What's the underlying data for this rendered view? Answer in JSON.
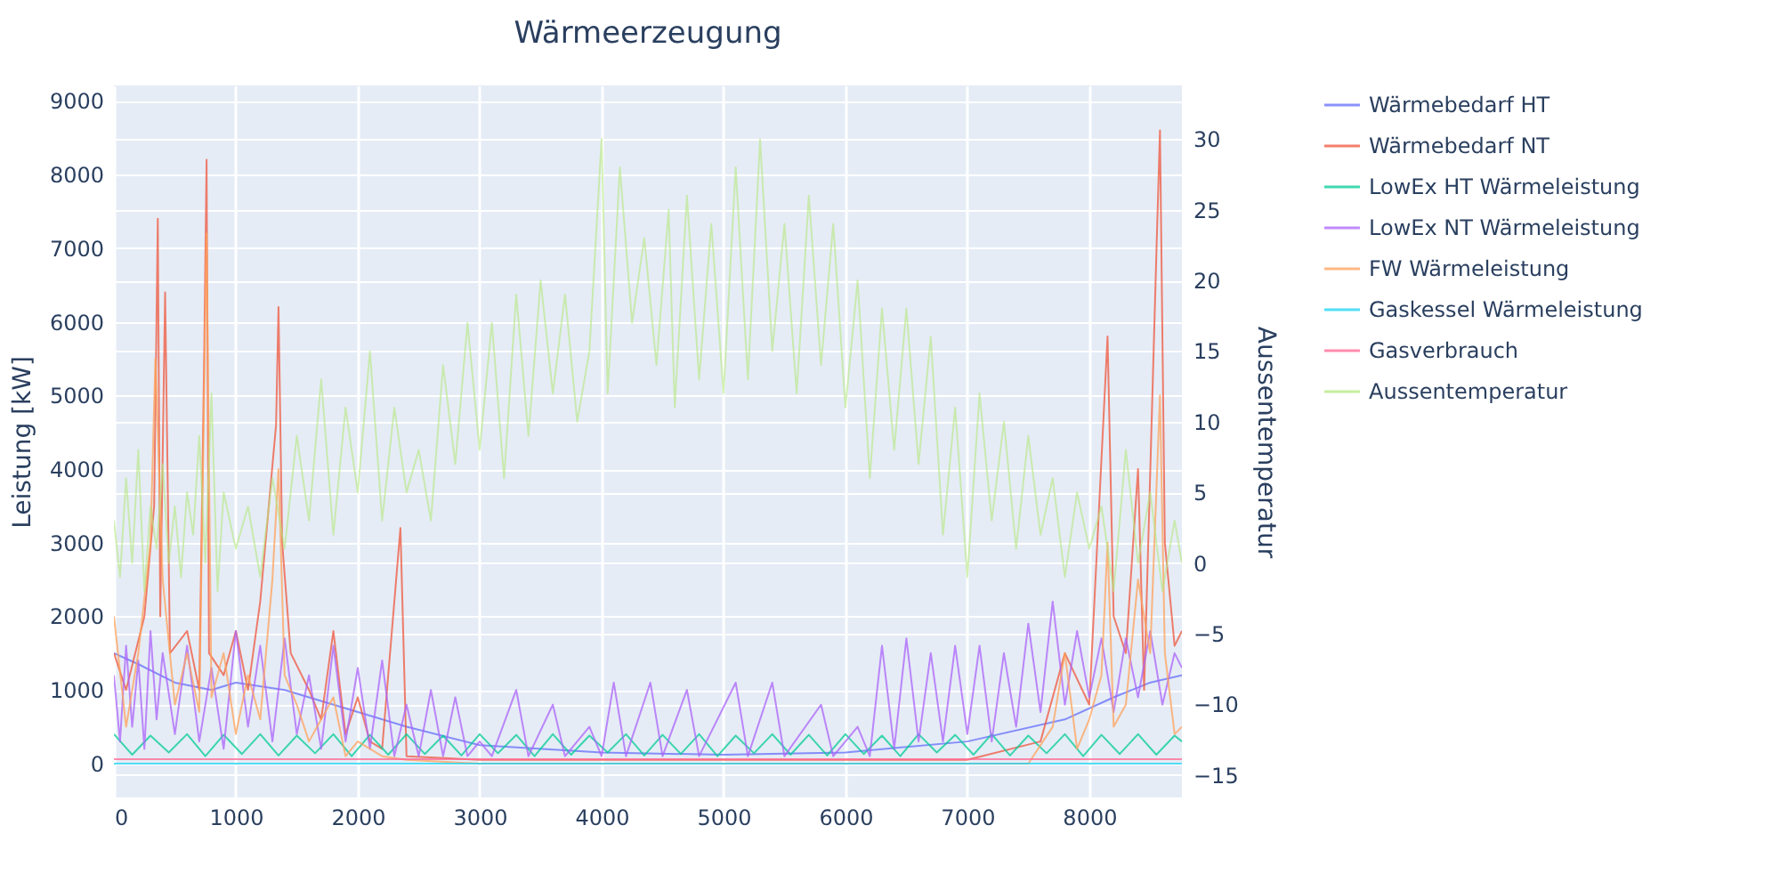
{
  "chart_data": {
    "type": "line",
    "title": "Wärmeerzeugung",
    "ylabel": "Leistung [kW]",
    "y2label": "Aussentemperatur",
    "xlim": [
      0,
      8760
    ],
    "xticks": [
      0,
      1000,
      2000,
      3000,
      4000,
      5000,
      6000,
      7000,
      8000
    ],
    "ylim": [
      -460,
      9210
    ],
    "yticks": [
      0,
      1000,
      2000,
      3000,
      4000,
      5000,
      6000,
      7000,
      8000,
      9000
    ],
    "y2lim": [
      -16.6,
      33.8
    ],
    "y2ticks": [
      -15,
      -10,
      -5,
      0,
      5,
      10,
      15,
      20,
      25,
      30
    ],
    "grid": true,
    "legend": "top right",
    "series": [
      {
        "name": "Wärmebedarf HT",
        "color": "#636efa",
        "x": [
          0,
          200,
          500,
          800,
          1000,
          1400,
          1800,
          2400,
          3000,
          4000,
          5000,
          6000,
          7000,
          7800,
          8200,
          8500,
          8760
        ],
        "values": [
          1500,
          1350,
          1100,
          1000,
          1100,
          1000,
          800,
          500,
          250,
          150,
          120,
          150,
          300,
          600,
          900,
          1100,
          1200
        ]
      },
      {
        "name": "Wärmebedarf NT",
        "color": "#ef553b",
        "x": [
          0,
          100,
          250,
          330,
          360,
          380,
          420,
          460,
          600,
          700,
          740,
          760,
          780,
          900,
          1000,
          1100,
          1200,
          1330,
          1350,
          1380,
          1450,
          1600,
          1700,
          1800,
          1900,
          2000,
          2100,
          2200,
          2350,
          2400,
          3000,
          4000,
          5000,
          6000,
          7000,
          7600,
          7800,
          8000,
          8150,
          8200,
          8300,
          8400,
          8450,
          8550,
          8580,
          8620,
          8700,
          8760
        ],
        "values": [
          1500,
          1000,
          2000,
          3500,
          7400,
          2000,
          6400,
          1500,
          1800,
          1000,
          5500,
          8200,
          1500,
          1200,
          1800,
          1000,
          2200,
          4600,
          6200,
          3000,
          1500,
          1000,
          600,
          1800,
          400,
          900,
          300,
          200,
          3200,
          100,
          50,
          50,
          50,
          50,
          50,
          300,
          1500,
          800,
          5800,
          2000,
          1500,
          4000,
          1000,
          6900,
          8600,
          3000,
          1600,
          1800
        ]
      },
      {
        "name": "LowEx HT Wärmeleistung",
        "color": "#00cc96",
        "x": [
          0,
          150,
          300,
          450,
          600,
          750,
          900,
          1050,
          1200,
          1350,
          1500,
          1650,
          1800,
          1950,
          2100,
          2250,
          2400,
          2550,
          2700,
          2850,
          3000,
          3150,
          3300,
          3450,
          3600,
          3750,
          3900,
          4050,
          4200,
          4350,
          4500,
          4650,
          4800,
          4950,
          5100,
          5250,
          5400,
          5550,
          5700,
          5850,
          6000,
          6150,
          6300,
          6450,
          6600,
          6750,
          6900,
          7050,
          7200,
          7350,
          7500,
          7650,
          7800,
          7950,
          8100,
          8250,
          8400,
          8550,
          8700,
          8760
        ],
        "values": [
          400,
          120,
          380,
          150,
          400,
          100,
          390,
          130,
          400,
          110,
          380,
          140,
          400,
          100,
          390,
          120,
          400,
          130,
          380,
          110,
          400,
          140,
          390,
          100,
          400,
          120,
          380,
          150,
          400,
          110,
          390,
          130,
          400,
          100,
          380,
          140,
          400,
          120,
          390,
          110,
          400,
          130,
          380,
          100,
          400,
          150,
          390,
          120,
          400,
          110,
          380,
          140,
          400,
          100,
          390,
          130,
          400,
          120,
          380,
          300
        ]
      },
      {
        "name": "LowEx NT Wärmeleistung",
        "color": "#ab63fa",
        "x": [
          0,
          50,
          100,
          150,
          200,
          250,
          300,
          350,
          400,
          500,
          600,
          700,
          800,
          900,
          1000,
          1100,
          1200,
          1300,
          1400,
          1500,
          1600,
          1700,
          1800,
          1900,
          2000,
          2100,
          2200,
          2300,
          2400,
          2500,
          2600,
          2700,
          2800,
          2900,
          3000,
          3100,
          3300,
          3400,
          3600,
          3700,
          3900,
          4000,
          4100,
          4200,
          4400,
          4500,
          4700,
          4800,
          5100,
          5200,
          5400,
          5500,
          5800,
          5900,
          6100,
          6200,
          6300,
          6400,
          6500,
          6600,
          6700,
          6800,
          6900,
          7000,
          7100,
          7200,
          7300,
          7400,
          7500,
          7600,
          7700,
          7800,
          7900,
          8000,
          8100,
          8200,
          8300,
          8400,
          8500,
          8600,
          8700,
          8760
        ],
        "values": [
          1200,
          300,
          1600,
          500,
          1400,
          200,
          1800,
          600,
          1500,
          400,
          1600,
          300,
          1300,
          200,
          1800,
          500,
          1600,
          300,
          1700,
          400,
          1200,
          200,
          1600,
          300,
          1300,
          200,
          1400,
          100,
          800,
          100,
          1000,
          100,
          900,
          100,
          300,
          100,
          1000,
          100,
          800,
          100,
          500,
          100,
          1100,
          100,
          1100,
          100,
          1000,
          100,
          1100,
          100,
          1100,
          100,
          800,
          100,
          500,
          100,
          1600,
          200,
          1700,
          300,
          1500,
          300,
          1600,
          400,
          1600,
          300,
          1500,
          500,
          1900,
          700,
          2200,
          800,
          1800,
          900,
          1700,
          700,
          1700,
          900,
          1800,
          800,
          1500,
          1300
        ]
      },
      {
        "name": "FW Wärmeleistung",
        "color": "#ffa15a",
        "x": [
          0,
          100,
          200,
          300,
          340,
          400,
          500,
          600,
          700,
          760,
          800,
          900,
          1000,
          1100,
          1200,
          1300,
          1350,
          1400,
          1500,
          1600,
          1700,
          1800,
          1900,
          2000,
          2200,
          2400,
          3000,
          4000,
          5000,
          6000,
          7000,
          7500,
          7700,
          7800,
          7900,
          8000,
          8100,
          8150,
          8200,
          8300,
          8400,
          8500,
          8580,
          8620,
          8700,
          8760
        ],
        "values": [
          2000,
          500,
          1500,
          3000,
          5500,
          2500,
          800,
          1500,
          700,
          7200,
          900,
          1500,
          400,
          1200,
          600,
          2500,
          4000,
          1200,
          800,
          300,
          600,
          900,
          100,
          300,
          100,
          50,
          0,
          0,
          0,
          0,
          0,
          0,
          500,
          1500,
          200,
          600,
          1200,
          3000,
          500,
          800,
          2500,
          1500,
          5000,
          1500,
          400,
          500
        ]
      },
      {
        "name": "Gaskessel Wärmeleistung",
        "color": "#19d3f3",
        "x": [
          0,
          8760
        ],
        "values": [
          0,
          0
        ]
      },
      {
        "name": "Gasverbrauch",
        "color": "#ff6692",
        "x": [
          0,
          8760
        ],
        "values": [
          60,
          60
        ]
      },
      {
        "name": "Aussentemperatur",
        "color": "#b6e880",
        "axis": "y2",
        "x": [
          0,
          50,
          100,
          150,
          200,
          250,
          300,
          350,
          400,
          450,
          500,
          550,
          600,
          650,
          700,
          750,
          800,
          850,
          900,
          1000,
          1100,
          1200,
          1300,
          1400,
          1500,
          1600,
          1700,
          1800,
          1900,
          2000,
          2100,
          2200,
          2300,
          2400,
          2500,
          2600,
          2700,
          2800,
          2900,
          3000,
          3100,
          3200,
          3300,
          3400,
          3500,
          3600,
          3700,
          3800,
          3900,
          4000,
          4050,
          4150,
          4250,
          4350,
          4450,
          4550,
          4600,
          4700,
          4800,
          4900,
          5000,
          5100,
          5200,
          5300,
          5400,
          5500,
          5600,
          5700,
          5800,
          5900,
          6000,
          6100,
          6200,
          6300,
          6400,
          6500,
          6600,
          6700,
          6800,
          6900,
          7000,
          7100,
          7200,
          7300,
          7400,
          7500,
          7600,
          7700,
          7800,
          7900,
          8000,
          8100,
          8200,
          8300,
          8400,
          8500,
          8600,
          8700,
          8760
        ],
        "values": [
          3,
          -1,
          6,
          0,
          8,
          -2,
          4,
          1,
          7,
          0,
          4,
          -1,
          5,
          2,
          9,
          0,
          12,
          -2,
          5,
          1,
          4,
          -1,
          6,
          1,
          9,
          3,
          13,
          2,
          11,
          5,
          15,
          3,
          11,
          5,
          8,
          3,
          14,
          7,
          17,
          8,
          17,
          6,
          19,
          9,
          20,
          12,
          19,
          10,
          15,
          30,
          12,
          28,
          17,
          23,
          14,
          25,
          11,
          26,
          13,
          24,
          12,
          28,
          13,
          30,
          15,
          24,
          12,
          26,
          14,
          24,
          11,
          20,
          6,
          18,
          8,
          18,
          7,
          16,
          2,
          11,
          -1,
          12,
          3,
          10,
          1,
          9,
          2,
          6,
          -1,
          5,
          1,
          4,
          -2,
          8,
          0,
          5,
          -2,
          3,
          0
        ]
      }
    ]
  }
}
